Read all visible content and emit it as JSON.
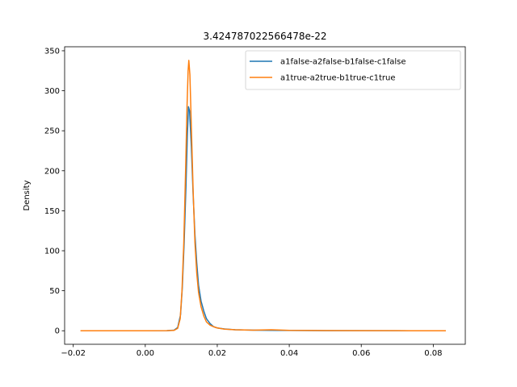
{
  "chart_data": {
    "type": "line",
    "title": "3.424787022566478e-22",
    "xlabel": "",
    "ylabel": "Density",
    "xlim": [
      -0.0224,
      0.0889
    ],
    "ylim": [
      -16.9,
      355.0
    ],
    "xticks": [
      -0.02,
      0.0,
      0.02,
      0.04,
      0.06,
      0.08
    ],
    "xtick_labels": [
      "−0.02",
      "0.00",
      "0.02",
      "0.04",
      "0.06",
      "0.08"
    ],
    "yticks": [
      0,
      50,
      100,
      150,
      200,
      250,
      300,
      350
    ],
    "ytick_labels": [
      "0",
      "50",
      "100",
      "150",
      "200",
      "250",
      "300",
      "350"
    ],
    "grid": false,
    "legend_position": "top-right",
    "series": [
      {
        "name": "a1false-a2false-b1false-c1false",
        "color": "#1f77b4",
        "points": [
          [
            -0.0155,
            0
          ],
          [
            0.0,
            0
          ],
          [
            0.006,
            0.1
          ],
          [
            0.008,
            0.8
          ],
          [
            0.009,
            4
          ],
          [
            0.0098,
            20
          ],
          [
            0.0103,
            55
          ],
          [
            0.0108,
            110
          ],
          [
            0.0113,
            180
          ],
          [
            0.0117,
            245
          ],
          [
            0.012,
            280
          ],
          [
            0.0123,
            275
          ],
          [
            0.0128,
            230
          ],
          [
            0.0133,
            170
          ],
          [
            0.0138,
            120
          ],
          [
            0.0143,
            85
          ],
          [
            0.0148,
            57
          ],
          [
            0.0155,
            37
          ],
          [
            0.0163,
            24
          ],
          [
            0.017,
            15
          ],
          [
            0.018,
            9
          ],
          [
            0.019,
            5
          ],
          [
            0.02,
            3.5
          ],
          [
            0.022,
            2.2
          ],
          [
            0.025,
            1.3
          ],
          [
            0.03,
            0.8
          ],
          [
            0.035,
            0.5
          ],
          [
            0.04,
            0.3
          ],
          [
            0.05,
            0.15
          ],
          [
            0.06,
            0.1
          ],
          [
            0.076,
            0
          ]
        ]
      },
      {
        "name": "a1true-a2true-b1true-c1true",
        "color": "#ff7f0e",
        "points": [
          [
            -0.018,
            0
          ],
          [
            0.0,
            0
          ],
          [
            0.006,
            0.1
          ],
          [
            0.008,
            0.5
          ],
          [
            0.009,
            3
          ],
          [
            0.0097,
            15
          ],
          [
            0.0102,
            50
          ],
          [
            0.0107,
            110
          ],
          [
            0.0112,
            200
          ],
          [
            0.0116,
            280
          ],
          [
            0.0119,
            325
          ],
          [
            0.0121,
            338
          ],
          [
            0.0124,
            320
          ],
          [
            0.0128,
            255
          ],
          [
            0.0133,
            175
          ],
          [
            0.0138,
            110
          ],
          [
            0.0143,
            72
          ],
          [
            0.0148,
            48
          ],
          [
            0.0155,
            30
          ],
          [
            0.0163,
            18
          ],
          [
            0.017,
            11
          ],
          [
            0.018,
            7
          ],
          [
            0.019,
            5
          ],
          [
            0.02,
            3.5
          ],
          [
            0.022,
            2
          ],
          [
            0.025,
            1.2
          ],
          [
            0.03,
            0.7
          ],
          [
            0.035,
            1.2
          ],
          [
            0.04,
            0.5
          ],
          [
            0.05,
            0.2
          ],
          [
            0.06,
            0.1
          ],
          [
            0.07,
            0.05
          ],
          [
            0.0835,
            0
          ]
        ]
      }
    ]
  }
}
